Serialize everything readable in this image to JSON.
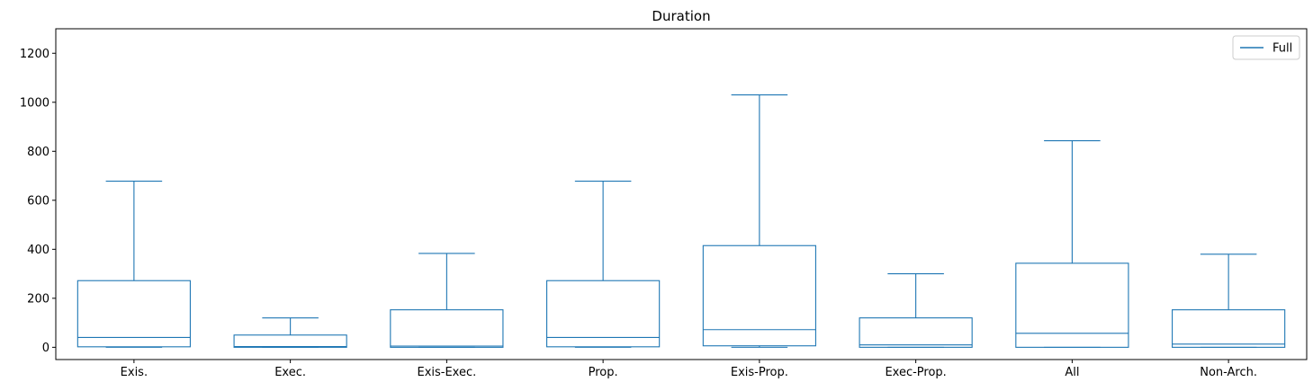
{
  "chart_data": {
    "type": "box",
    "title": "Duration",
    "xlabel": "",
    "ylabel": "",
    "ylim": [
      -50,
      1300
    ],
    "yticks": [
      0,
      200,
      400,
      600,
      800,
      1000,
      1200
    ],
    "grid": false,
    "legend": {
      "position": "top-right",
      "entries": [
        "Full"
      ]
    },
    "series": [
      {
        "name": "Full",
        "color": "#1f77b4"
      }
    ],
    "categories": [
      "Exis.",
      "Exec.",
      "Exis-Exec.",
      "Prop.",
      "Exis-Prop.",
      "Exec-Prop.",
      "All",
      "Non-Arch."
    ],
    "boxes": [
      {
        "label": "Exis.",
        "whisker_low": 0,
        "q1": 2,
        "median": 40,
        "q3": 272,
        "whisker_high": 678
      },
      {
        "label": "Exec.",
        "whisker_low": 0,
        "q1": 0,
        "median": 3,
        "q3": 50,
        "whisker_high": 120
      },
      {
        "label": "Exis-Exec.",
        "whisker_low": 0,
        "q1": 0,
        "median": 5,
        "q3": 153,
        "whisker_high": 383
      },
      {
        "label": "Prop.",
        "whisker_low": 0,
        "q1": 2,
        "median": 40,
        "q3": 272,
        "whisker_high": 678
      },
      {
        "label": "Exis-Prop.",
        "whisker_low": 0,
        "q1": 6,
        "median": 72,
        "q3": 415,
        "whisker_high": 1030
      },
      {
        "label": "Exec-Prop.",
        "whisker_low": 0,
        "q1": 0,
        "median": 10,
        "q3": 120,
        "whisker_high": 300
      },
      {
        "label": "All",
        "whisker_low": 0,
        "q1": 0,
        "median": 57,
        "q3": 343,
        "whisker_high": 843
      },
      {
        "label": "Non-Arch.",
        "whisker_low": 0,
        "q1": 0,
        "median": 13,
        "q3": 153,
        "whisker_high": 380
      }
    ]
  }
}
